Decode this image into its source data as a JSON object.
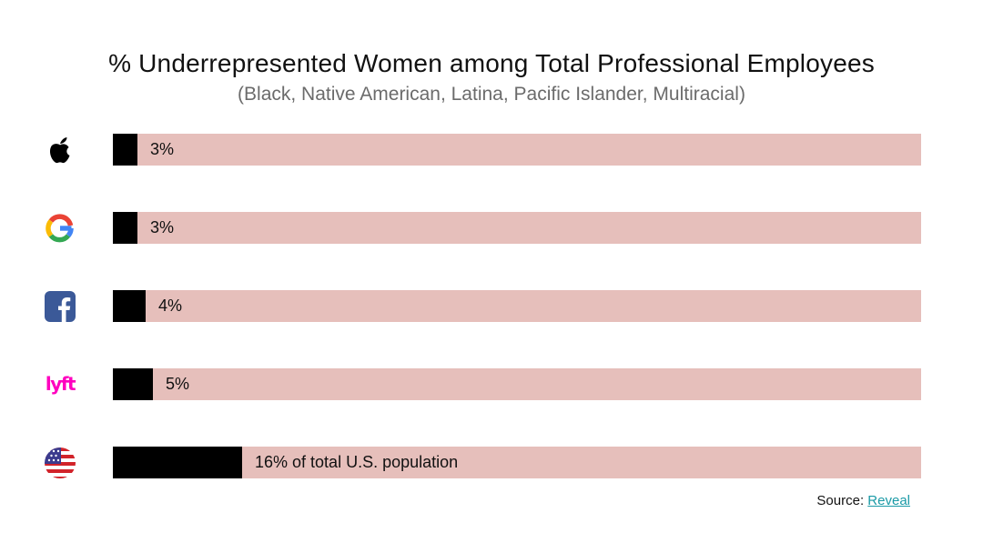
{
  "chart_data": {
    "type": "bar",
    "orientation": "horizontal",
    "title": "% Underrepresented Women among Total Professional Employees",
    "subtitle": "(Black, Native American, Latina, Pacific Islander, Multiracial)",
    "xlim": [
      0,
      100
    ],
    "grid": false,
    "categories": [
      "Apple",
      "Google",
      "Facebook",
      "Lyft",
      "U.S. population"
    ],
    "values": [
      3,
      3,
      4,
      5,
      16
    ],
    "data_labels": [
      "3%",
      "3%",
      "4%",
      "5%",
      "16% of total U.S. population"
    ],
    "category_icons": [
      "apple-icon",
      "google-icon",
      "facebook-icon",
      "lyft-icon",
      "us-flag-icon"
    ],
    "colors": {
      "fill": "#000000",
      "track": "#e6bfbb"
    }
  },
  "source": {
    "prefix": "Source: ",
    "link_text": "Reveal",
    "link_color": "#1a9aa6"
  }
}
